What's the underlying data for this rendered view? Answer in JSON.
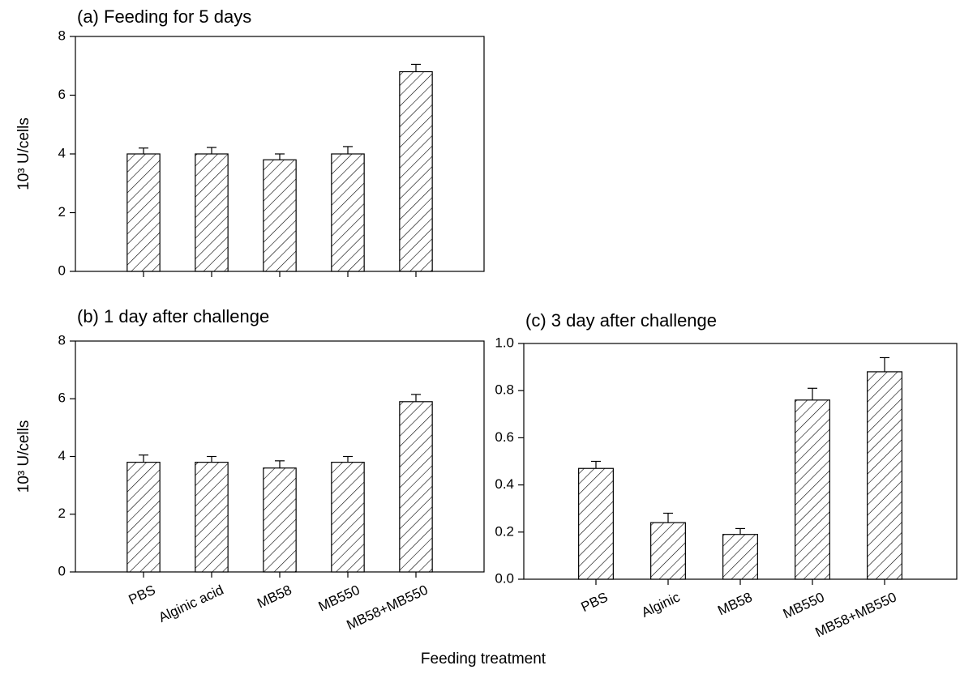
{
  "chart_data": [
    {
      "type": "bar",
      "title": "(a) Feeding for 5 days",
      "ylabel": "10³ U/cells",
      "categories": [
        null,
        null,
        null,
        null,
        null
      ],
      "values": [
        4.0,
        4.0,
        3.8,
        4.0,
        6.8
      ],
      "errors": [
        0.2,
        0.22,
        0.2,
        0.25,
        0.25
      ],
      "ylim": [
        0,
        8
      ],
      "yticks": [
        0,
        2,
        4,
        6,
        8
      ]
    },
    {
      "type": "bar",
      "title": "(b) 1 day after challenge",
      "ylabel": "10³ U/cells",
      "categories": [
        "PBS",
        "Alginic acid",
        "MB58",
        "MB550",
        "MB58+MB550"
      ],
      "values": [
        3.8,
        3.8,
        3.6,
        3.8,
        5.9
      ],
      "errors": [
        0.25,
        0.2,
        0.25,
        0.2,
        0.25
      ],
      "ylim": [
        0,
        8
      ],
      "yticks": [
        0,
        2,
        4,
        6,
        8
      ]
    },
    {
      "type": "bar",
      "title": "(c) 3 day after challenge",
      "categories": [
        "PBS",
        "Alginic",
        "MB58",
        "MB550",
        "MB58+MB550"
      ],
      "values": [
        0.47,
        0.24,
        0.19,
        0.76,
        0.88
      ],
      "errors": [
        0.03,
        0.04,
        0.025,
        0.05,
        0.06
      ],
      "ylim": [
        0,
        1
      ],
      "yticks": [
        {
          "value": 0,
          "label": "0.0"
        },
        0.2,
        0.4,
        0.6,
        0.8,
        {
          "value": 1,
          "label": "1.0"
        }
      ]
    }
  ],
  "figure_xlabel": "Feeding treatment"
}
